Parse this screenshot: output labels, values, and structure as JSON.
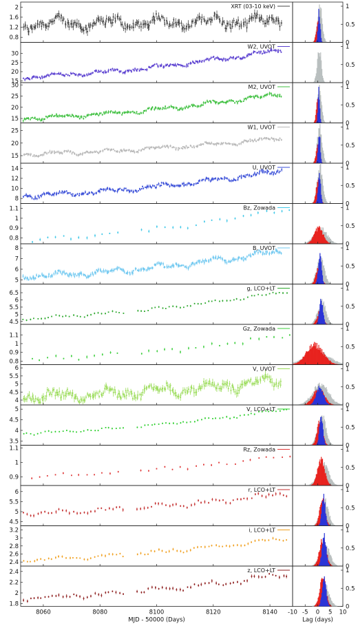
{
  "figure": {
    "xlabel_left": "MJD - 50000 (Days)",
    "xlabel_right": "Lag (days)",
    "x_ticks_left": [
      "8060",
      "8080",
      "8100",
      "8120",
      "8140"
    ],
    "x_ticks_right": [
      "-10",
      "-5",
      "0",
      "5",
      "10"
    ]
  },
  "chart_data": [
    {
      "type": "scatter",
      "name": "XRT (03-10 keV)",
      "color": "#444444",
      "yticks": [
        "2",
        "1.6",
        "1.2",
        "0.8"
      ],
      "ytick_vals": [
        2,
        1.6,
        1.2,
        0.8
      ],
      "ylim": [
        0.6,
        2.2
      ],
      "xlim": [
        8052,
        8148
      ],
      "trend": {
        "start": 1.35,
        "end": 1.45,
        "amp": 0.3
      },
      "cadence": "dense",
      "x_range": [
        8053,
        8144
      ],
      "lag": {
        "bins": "narrow",
        "grey_peak": 0.95,
        "red_peak": 0.55,
        "blue_peak": 0.9,
        "center": 0.2,
        "width": 0.6
      },
      "right_yticks": [
        "1",
        "0.5",
        "0"
      ]
    },
    {
      "type": "scatter",
      "name": "W2, UVOT",
      "color": "#5a3fd0",
      "yticks": [
        "35",
        "30",
        "25",
        "20",
        "15"
      ],
      "ytick_vals": [
        35,
        30,
        25,
        20,
        15
      ],
      "ylim": [
        14,
        36
      ],
      "xlim": [
        8052,
        8148
      ],
      "trend": {
        "start": 17,
        "end": 32,
        "amp": 1.5
      },
      "cadence": "dense",
      "x_range": [
        8053,
        8144
      ],
      "lag": {
        "grey_peak": 0.9,
        "red_peak": 0.0,
        "blue_peak": 0.0,
        "center": 0.0,
        "width": 0.5
      },
      "right_yticks": [
        "1",
        "0.5",
        "0"
      ]
    },
    {
      "type": "scatter",
      "name": "M2, UVOT",
      "color": "#3fc040",
      "yticks": [
        "30",
        "25",
        "20",
        "15"
      ],
      "ytick_vals": [
        30,
        25,
        20,
        15
      ],
      "ylim": [
        13,
        31
      ],
      "xlim": [
        8052,
        8148
      ],
      "trend": {
        "start": 15,
        "end": 26,
        "amp": 1.2
      },
      "cadence": "dense",
      "x_range": [
        8053,
        8144
      ],
      "lag": {
        "grey_peak": 0.95,
        "red_peak": 0.6,
        "blue_peak": 0.9,
        "center": 0.1,
        "width": 0.5
      },
      "right_yticks": [
        "1",
        "0.5",
        "0"
      ]
    },
    {
      "type": "scatter",
      "name": "W1, UVOT",
      "color": "#b8b8b8",
      "yticks": [
        "25",
        "20",
        "15"
      ],
      "ytick_vals": [
        25,
        20,
        15
      ],
      "ylim": [
        12,
        28
      ],
      "xlim": [
        8052,
        8148
      ],
      "trend": {
        "start": 15.5,
        "end": 22,
        "amp": 1.0
      },
      "cadence": "dense",
      "x_range": [
        8053,
        8144
      ],
      "lag": {
        "grey_peak": 0.95,
        "red_peak": 0.6,
        "blue_peak": 0.9,
        "center": 0.2,
        "width": 0.6
      },
      "right_yticks": [
        "1",
        "0.5",
        "0"
      ]
    },
    {
      "type": "scatter",
      "name": "U, UVOT",
      "color": "#3a4fd8",
      "yticks": [
        "14",
        "12",
        "10",
        "8"
      ],
      "ytick_vals": [
        14,
        12,
        10,
        8
      ],
      "ylim": [
        7,
        15
      ],
      "xlim": [
        8052,
        8148
      ],
      "trend": {
        "start": 8.5,
        "end": 13.5,
        "amp": 0.6
      },
      "cadence": "dense",
      "x_range": [
        8053,
        8144
      ],
      "lag": {
        "grey_peak": 0.95,
        "red_peak": 0.65,
        "blue_peak": 0.9,
        "center": 0.3,
        "width": 0.7
      },
      "right_yticks": [
        "1",
        "0.5",
        "0"
      ]
    },
    {
      "type": "scatter",
      "name": "Bz, Zowada",
      "color": "#40c8e8",
      "yticks": [
        "1.1",
        "1",
        "0.9",
        "0.8"
      ],
      "ytick_vals": [
        1.1,
        1.0,
        0.9,
        0.8
      ],
      "ylim": [
        0.74,
        1.15
      ],
      "xlim": [
        8052,
        8148
      ],
      "trend": {
        "start": 0.78,
        "end": 1.1,
        "amp": 0.03
      },
      "cadence": "sparse",
      "x_range": [
        8056,
        8147
      ],
      "lag": {
        "grey_peak": 0.4,
        "red_peak": 0.45,
        "blue_peak": 0.0,
        "center": 0.5,
        "width": 1.6
      },
      "right_yticks": [
        "1",
        "0.5",
        "0"
      ]
    },
    {
      "type": "scatter",
      "name": "B, UVOT",
      "color": "#70c8f0",
      "yticks": [
        "8",
        "7",
        "6",
        "5"
      ],
      "ytick_vals": [
        8,
        7,
        6,
        5
      ],
      "ylim": [
        4.6,
        8.4
      ],
      "xlim": [
        8052,
        8148
      ],
      "trend": {
        "start": 5.3,
        "end": 7.7,
        "amp": 0.35
      },
      "cadence": "dense",
      "x_range": [
        8053,
        8144
      ],
      "lag": {
        "grey_peak": 0.75,
        "red_peak": 0.5,
        "blue_peak": 0.85,
        "center": 0.5,
        "width": 0.9
      },
      "right_yticks": [
        "1",
        "0.5",
        "0"
      ]
    },
    {
      "type": "scatter",
      "name": "g, LCO+LT",
      "color": "#2ea82e",
      "yticks": [
        "7",
        "6.5",
        "6",
        "5.5",
        "5",
        "4.5"
      ],
      "ytick_vals": [
        7,
        6.5,
        6,
        5.5,
        5,
        4.5
      ],
      "ylim": [
        4.3,
        7.1
      ],
      "xlim": [
        8052,
        8148
      ],
      "trend": {
        "start": 4.7,
        "end": 6.6,
        "amp": 0.12
      },
      "cadence": "medium",
      "x_range": [
        8053,
        8146
      ],
      "lag": {
        "grey_peak": 0.6,
        "red_peak": 0.35,
        "blue_peak": 0.7,
        "center": 1.0,
        "width": 1.0
      },
      "right_yticks": [
        "1",
        "0.5",
        "0"
      ]
    },
    {
      "type": "scatter",
      "name": "Gz, Zowada",
      "color": "#3fcf3f",
      "yticks": [
        "1.2",
        "1.1",
        "1",
        "0.9",
        "0.8"
      ],
      "ytick_vals": [
        1.2,
        1.1,
        1.0,
        0.9,
        0.8
      ],
      "ylim": [
        0.76,
        1.22
      ],
      "xlim": [
        8052,
        8148
      ],
      "trend": {
        "start": 0.82,
        "end": 1.1,
        "amp": 0.03
      },
      "cadence": "sparse",
      "x_range": [
        8056,
        8147
      ],
      "lag": {
        "grey_peak": 0.35,
        "red_peak": 0.55,
        "blue_peak": 0.0,
        "center": -1.0,
        "width": 3.0
      },
      "right_yticks": [
        "1",
        "0.5",
        "0"
      ]
    },
    {
      "type": "scatter",
      "name": "V, UVOT",
      "color": "#9bdc5a",
      "yticks": [
        "6",
        "5.5",
        "5",
        "4.5",
        "4"
      ],
      "ytick_vals": [
        6,
        5.5,
        5,
        4.5,
        4
      ],
      "ylim": [
        3.7,
        6.2
      ],
      "xlim": [
        8052,
        8148
      ],
      "trend": {
        "start": 4.2,
        "end": 5.2,
        "amp": 0.45
      },
      "cadence": "dense",
      "x_range": [
        8053,
        8144
      ],
      "lag": {
        "grey_peak": 0.55,
        "red_peak": 0.45,
        "blue_peak": 0.5,
        "center": 0.5,
        "width": 2.0
      },
      "right_yticks": [
        "1",
        "0.5",
        "0"
      ]
    },
    {
      "type": "scatter",
      "name": "V, LCO+LT",
      "color": "#2fcf2f",
      "yticks": [
        "5",
        "4.5",
        "4",
        "3.5"
      ],
      "ytick_vals": [
        5,
        4.5,
        4,
        3.5
      ],
      "ylim": [
        3.3,
        5.2
      ],
      "xlim": [
        8052,
        8148
      ],
      "trend": {
        "start": 3.85,
        "end": 5.0,
        "amp": 0.08
      },
      "cadence": "medium",
      "x_range": [
        8053,
        8146
      ],
      "lag": {
        "grey_peak": 0.75,
        "red_peak": 0.65,
        "blue_peak": 0.75,
        "center": 1.0,
        "width": 1.0
      },
      "right_yticks": [
        "1",
        "0.5",
        "0"
      ]
    },
    {
      "type": "scatter",
      "name": "Rz, Zowada",
      "color": "#e03a3a",
      "yticks": [
        "1.1",
        "1",
        "0.9"
      ],
      "ytick_vals": [
        1.1,
        1.0,
        0.9
      ],
      "ylim": [
        0.84,
        1.12
      ],
      "xlim": [
        8052,
        8148
      ],
      "trend": {
        "start": 0.9,
        "end": 1.05,
        "amp": 0.015
      },
      "cadence": "sparse",
      "x_range": [
        8056,
        8147
      ],
      "lag": {
        "grey_peak": 0.6,
        "red_peak": 0.7,
        "blue_peak": 0.0,
        "center": 1.5,
        "width": 1.3
      },
      "right_yticks": [
        "1",
        "0.5",
        "0"
      ]
    },
    {
      "type": "scatter",
      "name": "r, LCO+LT",
      "color": "#c43030",
      "yticks": [
        "6",
        "5.5",
        "5",
        "4.5"
      ],
      "ytick_vals": [
        6,
        5.5,
        5,
        4.5
      ],
      "ylim": [
        4.3,
        6.3
      ],
      "xlim": [
        8052,
        8148
      ],
      "trend": {
        "start": 4.9,
        "end": 5.9,
        "amp": 0.15
      },
      "cadence": "medium",
      "x_range": [
        8053,
        8146
      ],
      "lag": {
        "grey_peak": 0.65,
        "red_peak": 0.7,
        "blue_peak": 0.8,
        "center": 2.0,
        "width": 1.0
      },
      "right_yticks": [
        "1",
        "0.5",
        "0"
      ]
    },
    {
      "type": "scatter",
      "name": "i, LCO+LT",
      "color": "#f0a020",
      "yticks": [
        "3.2",
        "3",
        "2.8",
        "2.6",
        "2.4"
      ],
      "ytick_vals": [
        3.2,
        3.0,
        2.8,
        2.6,
        2.4
      ],
      "ylim": [
        2.3,
        3.3
      ],
      "xlim": [
        8052,
        8148
      ],
      "trend": {
        "start": 2.45,
        "end": 3.0,
        "amp": 0.06
      },
      "cadence": "medium",
      "x_range": [
        8053,
        8146
      ],
      "lag": {
        "grey_peak": 0.55,
        "red_peak": 0.75,
        "blue_peak": 0.8,
        "center": 2.2,
        "width": 1.2
      },
      "right_yticks": [
        "1",
        "0.5",
        "0"
      ]
    },
    {
      "type": "scatter",
      "name": "z, LCO+LT",
      "color": "#8e1f1f",
      "yticks": [
        "2.4",
        "2.2",
        "2",
        "1.8"
      ],
      "ytick_vals": [
        2.4,
        2.2,
        2.0,
        1.8
      ],
      "ylim": [
        1.75,
        2.5
      ],
      "xlim": [
        8052,
        8148
      ],
      "trend": {
        "start": 1.9,
        "end": 2.35,
        "amp": 0.06
      },
      "cadence": "medium",
      "x_range": [
        8053,
        8146
      ],
      "lag": {
        "grey_peak": 0.55,
        "red_peak": 0.8,
        "blue_peak": 0.85,
        "center": 2.2,
        "width": 1.1
      },
      "right_yticks": [
        "1",
        "0.5",
        "0"
      ]
    }
  ]
}
